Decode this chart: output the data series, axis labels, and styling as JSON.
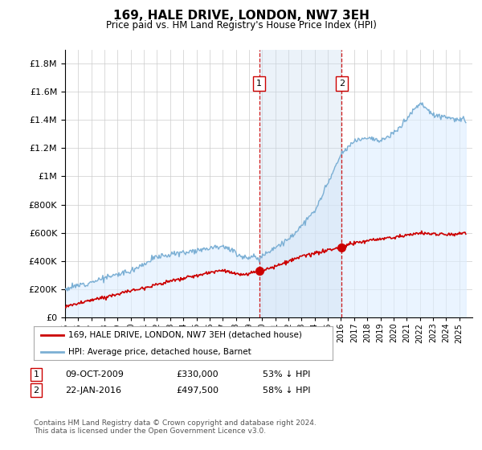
{
  "title": "169, HALE DRIVE, LONDON, NW7 3EH",
  "subtitle": "Price paid vs. HM Land Registry's House Price Index (HPI)",
  "ylim": [
    0,
    1900000
  ],
  "yticks": [
    0,
    200000,
    400000,
    600000,
    800000,
    1000000,
    1200000,
    1400000,
    1600000,
    1800000
  ],
  "xmin": 1995,
  "xmax": 2026,
  "sale1_x": 2009.77,
  "sale1_y": 330000,
  "sale1_label": "1",
  "sale1_date": "09-OCT-2009",
  "sale1_price": "£330,000",
  "sale1_pct": "53% ↓ HPI",
  "sale2_x": 2016.06,
  "sale2_y": 497500,
  "sale2_label": "2",
  "sale2_date": "22-JAN-2016",
  "sale2_price": "£497,500",
  "sale2_pct": "58% ↓ HPI",
  "red_line_color": "#cc0000",
  "blue_line_color": "#7bafd4",
  "blue_fill_color": "#ddeeff",
  "marker_box_color": "#cc0000",
  "dashed_line_color": "#cc0000",
  "legend_label_red": "169, HALE DRIVE, LONDON, NW7 3EH (detached house)",
  "legend_label_blue": "HPI: Average price, detached house, Barnet",
  "footnote": "Contains HM Land Registry data © Crown copyright and database right 2024.\nThis data is licensed under the Open Government Licence v3.0.",
  "background_color": "#ffffff",
  "grid_color": "#cccccc"
}
